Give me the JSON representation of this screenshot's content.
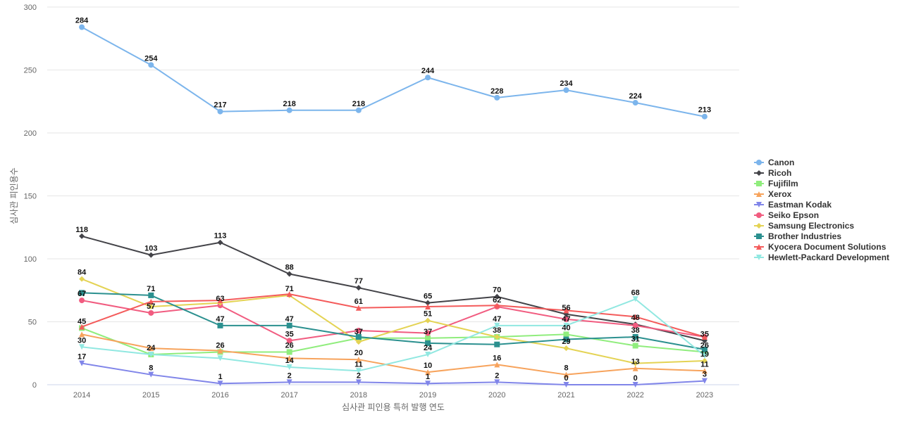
{
  "chart_data": {
    "type": "line",
    "title": "",
    "xlabel": "심사관 피인용 특허 발행 연도",
    "ylabel": "심사관 피인용수",
    "x": [
      "2014",
      "2015",
      "2016",
      "2017",
      "2018",
      "2019",
      "2020",
      "2021",
      "2022",
      "2023"
    ],
    "ylim": [
      0,
      300
    ],
    "yticks": [
      0,
      50,
      100,
      150,
      200,
      250,
      300
    ],
    "grid": true,
    "legend_position": "right",
    "series": [
      {
        "name": "Canon",
        "color": "#7cb5ec",
        "marker": "circle",
        "values": [
          284,
          254,
          217,
          218,
          218,
          244,
          228,
          234,
          224,
          213
        ]
      },
      {
        "name": "Ricoh",
        "color": "#434348",
        "marker": "diamond",
        "values": [
          118,
          103,
          113,
          88,
          77,
          65,
          70,
          56,
          48,
          35
        ]
      },
      {
        "name": "Fujifilm",
        "color": "#90ed7d",
        "marker": "square",
        "values": [
          45,
          24,
          26,
          26,
          37,
          37,
          38,
          40,
          31,
          26
        ]
      },
      {
        "name": "Xerox",
        "color": "#f7a35c",
        "marker": "triangle",
        "values": [
          40,
          29,
          27,
          21,
          20,
          10,
          16,
          8,
          13,
          11
        ]
      },
      {
        "name": "Eastman Kodak",
        "color": "#8085e9",
        "marker": "triangle-down",
        "values": [
          17,
          8,
          1,
          2,
          2,
          1,
          2,
          0,
          0,
          3
        ]
      },
      {
        "name": "Seiko Epson",
        "color": "#f15c80",
        "marker": "circle",
        "values": [
          67,
          57,
          63,
          35,
          43,
          41,
          62,
          52,
          47,
          38
        ]
      },
      {
        "name": "Samsung Electronics",
        "color": "#e4d354",
        "marker": "diamond",
        "values": [
          84,
          62,
          65,
          71,
          34,
          51,
          38,
          29,
          17,
          19
        ]
      },
      {
        "name": "Brother Industries",
        "color": "#2b908f",
        "marker": "square",
        "values": [
          73,
          71,
          47,
          47,
          38,
          33,
          32,
          36,
          38,
          28
        ]
      },
      {
        "name": "Kyocera Document Solutions",
        "color": "#f45b5b",
        "marker": "triangle",
        "values": [
          46,
          66,
          67,
          72,
          61,
          62,
          63,
          59,
          54,
          38
        ]
      },
      {
        "name": "Hewlett-Packard Development",
        "color": "#91e8e1",
        "marker": "triangle-down",
        "values": [
          30,
          24,
          21,
          14,
          11,
          24,
          47,
          47,
          68,
          23
        ]
      }
    ],
    "data_labels": [
      {
        "text": "284",
        "x": "2014",
        "y": 284
      },
      {
        "text": "254",
        "x": "2015",
        "y": 254
      },
      {
        "text": "217",
        "x": "2016",
        "y": 217
      },
      {
        "text": "218",
        "x": "2017",
        "y": 218
      },
      {
        "text": "218",
        "x": "2018",
        "y": 218
      },
      {
        "text": "244",
        "x": "2019",
        "y": 244
      },
      {
        "text": "228",
        "x": "2020",
        "y": 228
      },
      {
        "text": "234",
        "x": "2021",
        "y": 234
      },
      {
        "text": "224",
        "x": "2022",
        "y": 224
      },
      {
        "text": "213",
        "x": "2023",
        "y": 213
      },
      {
        "text": "118",
        "x": "2014",
        "y": 118
      },
      {
        "text": "103",
        "x": "2015",
        "y": 103
      },
      {
        "text": "113",
        "x": "2016",
        "y": 113
      },
      {
        "text": "88",
        "x": "2017",
        "y": 88
      },
      {
        "text": "77",
        "x": "2018",
        "y": 77
      },
      {
        "text": "65",
        "x": "2019",
        "y": 65
      },
      {
        "text": "70",
        "x": "2020",
        "y": 70
      },
      {
        "text": "56",
        "x": "2021",
        "y": 56
      },
      {
        "text": "48",
        "x": "2022",
        "y": 48
      },
      {
        "text": "35",
        "x": "2023",
        "y": 35
      },
      {
        "text": "84",
        "x": "2014",
        "y": 84
      },
      {
        "text": "67",
        "x": "2014",
        "y": 67
      },
      {
        "text": "45",
        "x": "2014",
        "y": 45
      },
      {
        "text": "30",
        "x": "2014",
        "y": 30
      },
      {
        "text": "17",
        "x": "2014",
        "y": 17
      },
      {
        "text": "71",
        "x": "2015",
        "y": 71
      },
      {
        "text": "57",
        "x": "2015",
        "y": 57
      },
      {
        "text": "24",
        "x": "2015",
        "y": 24
      },
      {
        "text": "8",
        "x": "2015",
        "y": 8
      },
      {
        "text": "63",
        "x": "2016",
        "y": 63
      },
      {
        "text": "47",
        "x": "2016",
        "y": 47
      },
      {
        "text": "26",
        "x": "2016",
        "y": 26
      },
      {
        "text": "1",
        "x": "2016",
        "y": 1
      },
      {
        "text": "71",
        "x": "2017",
        "y": 71
      },
      {
        "text": "47",
        "x": "2017",
        "y": 47
      },
      {
        "text": "35",
        "x": "2017",
        "y": 35
      },
      {
        "text": "26",
        "x": "2017",
        "y": 26
      },
      {
        "text": "14",
        "x": "2017",
        "y": 14
      },
      {
        "text": "2",
        "x": "2017",
        "y": 2
      },
      {
        "text": "61",
        "x": "2018",
        "y": 61
      },
      {
        "text": "37",
        "x": "2018",
        "y": 37
      },
      {
        "text": "20",
        "x": "2018",
        "y": 20
      },
      {
        "text": "11",
        "x": "2018",
        "y": 11
      },
      {
        "text": "2",
        "x": "2018",
        "y": 2
      },
      {
        "text": "51",
        "x": "2019",
        "y": 51
      },
      {
        "text": "37",
        "x": "2019",
        "y": 37
      },
      {
        "text": "24",
        "x": "2019",
        "y": 24
      },
      {
        "text": "10",
        "x": "2019",
        "y": 10
      },
      {
        "text": "1",
        "x": "2019",
        "y": 1
      },
      {
        "text": "62",
        "x": "2020",
        "y": 62
      },
      {
        "text": "47",
        "x": "2020",
        "y": 47
      },
      {
        "text": "38",
        "x": "2020",
        "y": 38
      },
      {
        "text": "16",
        "x": "2020",
        "y": 16
      },
      {
        "text": "2",
        "x": "2020",
        "y": 2
      },
      {
        "text": "47",
        "x": "2021",
        "y": 47
      },
      {
        "text": "40",
        "x": "2021",
        "y": 40
      },
      {
        "text": "29",
        "x": "2021",
        "y": 29
      },
      {
        "text": "8",
        "x": "2021",
        "y": 8
      },
      {
        "text": "0",
        "x": "2021",
        "y": 0
      },
      {
        "text": "68",
        "x": "2022",
        "y": 68
      },
      {
        "text": "38",
        "x": "2022",
        "y": 38
      },
      {
        "text": "31",
        "x": "2022",
        "y": 31
      },
      {
        "text": "13",
        "x": "2022",
        "y": 13
      },
      {
        "text": "0",
        "x": "2022",
        "y": 0
      },
      {
        "text": "26",
        "x": "2023",
        "y": 26
      },
      {
        "text": "19",
        "x": "2023",
        "y": 19
      },
      {
        "text": "11",
        "x": "2023",
        "y": 11
      },
      {
        "text": "3",
        "x": "2023",
        "y": 3
      }
    ]
  }
}
